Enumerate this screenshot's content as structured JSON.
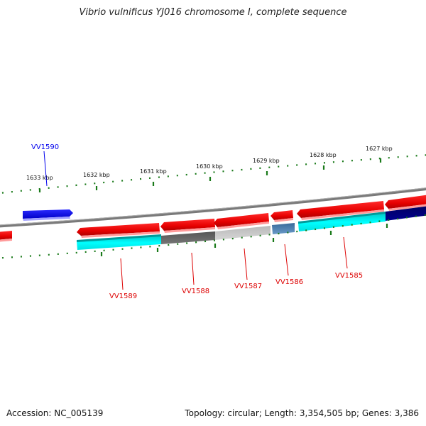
{
  "title": "Vibrio vulnificus YJ016 chromosome I, complete sequence",
  "accession": "Accession: NC_005139",
  "topology": "Topology: circular; Length: 3,354,505 bp; Genes: 3,386",
  "ticks": [
    {
      "label": "1633 kbp"
    },
    {
      "label": "1632 kbp"
    },
    {
      "label": "1631 kbp"
    },
    {
      "label": "1630 kbp"
    },
    {
      "label": "1629 kbp"
    },
    {
      "label": "1628 kbp"
    },
    {
      "label": "1627 kbp"
    }
  ],
  "genes": [
    {
      "label": "VV1590",
      "color": "#0000ee"
    },
    {
      "label": "VV1589",
      "color": "#dd0000"
    },
    {
      "label": "VV1588",
      "color": "#dd0000"
    },
    {
      "label": "VV1587",
      "color": "#dd0000"
    },
    {
      "label": "VV1586",
      "color": "#dd0000"
    },
    {
      "label": "VV1585",
      "color": "#dd0000"
    }
  ],
  "colors": {
    "backbone": "#808080",
    "forward_strand": "#0000ff",
    "reverse_strand": "#ff0000",
    "cds_cyan": "#00ffff",
    "cds_navy": "#000080",
    "cds_darkgray": "#666666",
    "cds_lightgray": "#c8c8c8",
    "cds_steelblue": "#4a7fb5",
    "tick_color": "#1a7a1a"
  }
}
